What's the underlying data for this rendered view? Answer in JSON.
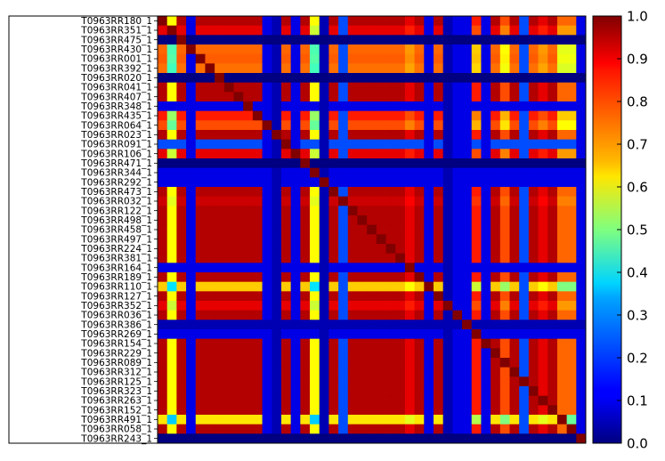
{
  "chart_data": {
    "type": "heatmap",
    "title": "",
    "xlabel": "",
    "ylabel": "",
    "colormap": "jet",
    "clim": [
      0.0,
      1.0
    ],
    "colorbar_ticks": [
      "0.0",
      "0.1",
      "0.2",
      "0.3",
      "0.4",
      "0.5",
      "0.6",
      "0.7",
      "0.8",
      "0.9",
      "1.0"
    ],
    "row_labels": [
      "T0963RR180_1",
      "T0963RR351_1",
      "T0963RR475_1",
      "T0963RR430_1",
      "T0963RR001_1",
      "T0963RR392_1",
      "T0963RR020_1",
      "T0963RR041_1",
      "T0963RR407_1",
      "T0963RR348_1",
      "T0963RR435_1",
      "T0963RR064_1",
      "T0963RR023_1",
      "T0963RR091_1",
      "T0963RR106_1",
      "T0963RR471_1",
      "T0963RR344_1",
      "T0963RR292_1",
      "T0963RR473_1",
      "T0963RR032_1",
      "T0963RR122_1",
      "T0963RR498_1",
      "T0963RR458_1",
      "T0963RR497_1",
      "T0963RR224_1",
      "T0963RR381_1",
      "T0963RR164_1",
      "T0963RR189_1",
      "T0963RR110_1",
      "T0963RR127_1",
      "T0963RR352_1",
      "T0963RR036_1",
      "T0963RR386_1",
      "T0963RR269_1",
      "T0963RR154_1",
      "T0963RR229_1",
      "T0963RR089_1",
      "T0963RR312_1",
      "T0963RR125_1",
      "T0963RR323_1",
      "T0963RR263_1",
      "T0963RR152_1",
      "T0963RR491_1",
      "T0963RR058_1",
      "T0963RR243_1"
    ],
    "matrix_size": 45,
    "group_levels": [
      0.95,
      0.85,
      0.0,
      0.6,
      0.62,
      0.58,
      0.0,
      0.95,
      0.95,
      0.1,
      0.75,
      0.65,
      0.95,
      0.2,
      0.85,
      0.0,
      0.1,
      0.1,
      0.95,
      0.9,
      0.95,
      0.95,
      0.95,
      0.95,
      0.95,
      0.95,
      0.1,
      0.95,
      0.4,
      0.95,
      0.85,
      0.95,
      0.05,
      0.1,
      0.95,
      0.95,
      0.95,
      0.95,
      0.95,
      0.95,
      0.95,
      0.95,
      0.35,
      0.95,
      0.0
    ],
    "col_profile": [
      0.95,
      0.3,
      0.95,
      0.1,
      0.95,
      0.95,
      0.95,
      0.95,
      0.95,
      0.95,
      0.95,
      0.1,
      0.05,
      0.95,
      0.1,
      0.95,
      0.3,
      0.05,
      0.95,
      0.2,
      0.95,
      0.95,
      0.95,
      0.95,
      0.95,
      0.95,
      0.85,
      0.95,
      0.1,
      0.95,
      0.05,
      0.1,
      0.1,
      0.75,
      0.1,
      0.95,
      0.65,
      0.95,
      0.2,
      0.95,
      0.85,
      0.95,
      0.6,
      0.6,
      0.1
    ]
  }
}
